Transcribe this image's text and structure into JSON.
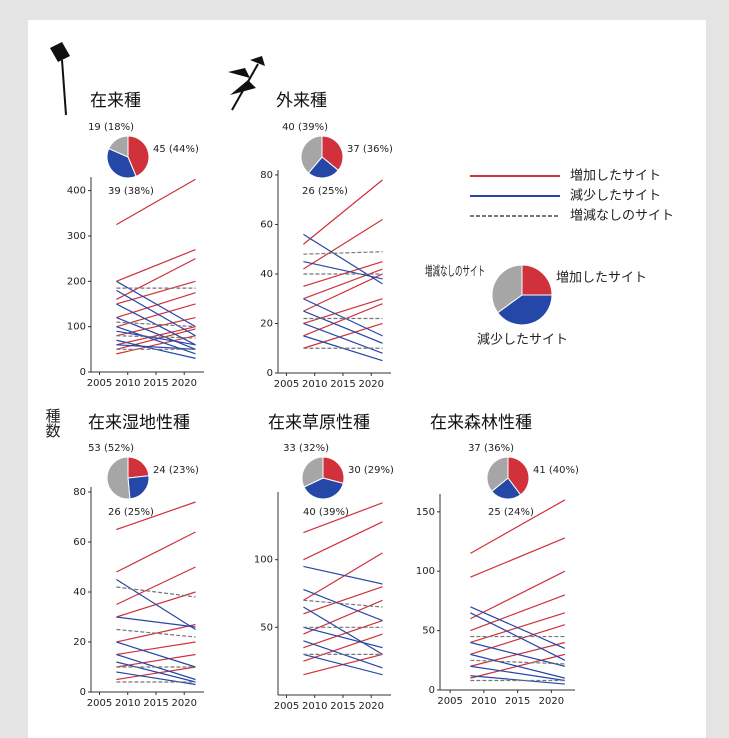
{
  "ylabel": "種数",
  "legend": [
    {
      "name": "増加したサイト",
      "color": "#d0313a",
      "dash": false
    },
    {
      "name": "減少したサイト",
      "color": "#2447a8",
      "dash": false
    },
    {
      "name": "増減なしのサイト",
      "color": "#777777",
      "dash": true
    }
  ],
  "pie_legend": {
    "labels": [
      "増加したサイト",
      "減少したサイト",
      "増減なしのサイト"
    ],
    "values": [
      25,
      40,
      35
    ],
    "colors": [
      "#d0313a",
      "#2447a8",
      "#a6a6a6"
    ]
  },
  "chart_data": [
    {
      "type": "line",
      "title": "在来種",
      "x": [
        2008,
        2022
      ],
      "xlim": [
        2003.5,
        2023.5
      ],
      "xticks": [
        2005,
        2010,
        2015,
        2020
      ],
      "ylim": [
        0,
        430
      ],
      "yticks": [
        0,
        100,
        200,
        300,
        400
      ],
      "pie": {
        "values": [
          45,
          39,
          19
        ],
        "value_labels": [
          "45 (44%)",
          "39 (38%)",
          "19 (18%)"
        ],
        "colors": [
          "#d0313a",
          "#2447a8",
          "#a6a6a6"
        ]
      },
      "series": [
        {
          "color": "#d0313a",
          "values": [
            325,
            425
          ]
        },
        {
          "color": "#d0313a",
          "values": [
            200,
            270
          ]
        },
        {
          "color": "#d0313a",
          "values": [
            160,
            250
          ]
        },
        {
          "color": "#d0313a",
          "values": [
            150,
            200
          ]
        },
        {
          "color": "#d0313a",
          "values": [
            120,
            175
          ]
        },
        {
          "color": "#d0313a",
          "values": [
            100,
            150
          ]
        },
        {
          "color": "#d0313a",
          "values": [
            80,
            120
          ]
        },
        {
          "color": "#d0313a",
          "values": [
            60,
            100
          ]
        },
        {
          "color": "#d0313a",
          "values": [
            50,
            95
          ]
        },
        {
          "color": "#d0313a",
          "values": [
            40,
            80
          ]
        },
        {
          "color": "#2447a8",
          "values": [
            200,
            100
          ]
        },
        {
          "color": "#2447a8",
          "values": [
            180,
            80
          ]
        },
        {
          "color": "#2447a8",
          "values": [
            150,
            60
          ]
        },
        {
          "color": "#2447a8",
          "values": [
            120,
            50
          ]
        },
        {
          "color": "#2447a8",
          "values": [
            100,
            40
          ]
        },
        {
          "color": "#2447a8",
          "values": [
            90,
            60
          ]
        },
        {
          "color": "#2447a8",
          "values": [
            70,
            30
          ]
        },
        {
          "color": "#2447a8",
          "values": [
            60,
            50
          ]
        },
        {
          "color": "#777777",
          "dash": true,
          "values": [
            185,
            185
          ]
        },
        {
          "color": "#777777",
          "dash": true,
          "values": [
            110,
            100
          ]
        },
        {
          "color": "#777777",
          "dash": true,
          "values": [
            80,
            75
          ]
        },
        {
          "color": "#777777",
          "dash": true,
          "values": [
            50,
            50
          ]
        }
      ]
    },
    {
      "type": "line",
      "title": "外来種",
      "x": [
        2008,
        2022
      ],
      "xlim": [
        2003.5,
        2023.5
      ],
      "xticks": [
        2005,
        2010,
        2015,
        2020
      ],
      "ylim": [
        0,
        82
      ],
      "yticks": [
        0,
        20,
        40,
        60,
        80
      ],
      "pie": {
        "values": [
          37,
          26,
          40
        ],
        "value_labels": [
          "37 (36%)",
          "26 (25%)",
          "40 (39%)"
        ],
        "colors": [
          "#d0313a",
          "#2447a8",
          "#a6a6a6"
        ]
      },
      "series": [
        {
          "color": "#d0313a",
          "values": [
            52,
            78
          ]
        },
        {
          "color": "#d0313a",
          "values": [
            42,
            62
          ]
        },
        {
          "color": "#d0313a",
          "values": [
            35,
            45
          ]
        },
        {
          "color": "#d0313a",
          "values": [
            30,
            42
          ]
        },
        {
          "color": "#d0313a",
          "values": [
            25,
            40
          ]
        },
        {
          "color": "#d0313a",
          "values": [
            20,
            30
          ]
        },
        {
          "color": "#d0313a",
          "values": [
            15,
            28
          ]
        },
        {
          "color": "#d0313a",
          "values": [
            10,
            20
          ]
        },
        {
          "color": "#2447a8",
          "values": [
            56,
            36
          ]
        },
        {
          "color": "#2447a8",
          "values": [
            45,
            38
          ]
        },
        {
          "color": "#2447a8",
          "values": [
            30,
            15
          ]
        },
        {
          "color": "#2447a8",
          "values": [
            25,
            12
          ]
        },
        {
          "color": "#2447a8",
          "values": [
            20,
            8
          ]
        },
        {
          "color": "#2447a8",
          "values": [
            15,
            5
          ]
        },
        {
          "color": "#777777",
          "dash": true,
          "values": [
            48,
            49
          ]
        },
        {
          "color": "#777777",
          "dash": true,
          "values": [
            40,
            40
          ]
        },
        {
          "color": "#777777",
          "dash": true,
          "values": [
            22,
            22
          ]
        },
        {
          "color": "#777777",
          "dash": true,
          "values": [
            10,
            10
          ]
        }
      ]
    },
    {
      "type": "line",
      "title": "在来湿地性種",
      "x": [
        2008,
        2022
      ],
      "xlim": [
        2003.5,
        2023.5
      ],
      "xticks": [
        2005,
        2010,
        2015,
        2020
      ],
      "ylim": [
        0,
        82
      ],
      "yticks": [
        0,
        20,
        40,
        60,
        80
      ],
      "pie": {
        "values": [
          24,
          26,
          53
        ],
        "value_labels": [
          "24 (23%)",
          "26 (25%)",
          "53 (52%)"
        ],
        "colors": [
          "#d0313a",
          "#2447a8",
          "#a6a6a6"
        ]
      },
      "series": [
        {
          "color": "#d0313a",
          "values": [
            65,
            76
          ]
        },
        {
          "color": "#d0313a",
          "values": [
            48,
            64
          ]
        },
        {
          "color": "#d0313a",
          "values": [
            35,
            50
          ]
        },
        {
          "color": "#d0313a",
          "values": [
            30,
            40
          ]
        },
        {
          "color": "#d0313a",
          "values": [
            20,
            27
          ]
        },
        {
          "color": "#d0313a",
          "values": [
            15,
            20
          ]
        },
        {
          "color": "#d0313a",
          "values": [
            10,
            15
          ]
        },
        {
          "color": "#d0313a",
          "values": [
            5,
            10
          ]
        },
        {
          "color": "#2447a8",
          "values": [
            45,
            25
          ]
        },
        {
          "color": "#2447a8",
          "values": [
            30,
            26
          ]
        },
        {
          "color": "#2447a8",
          "values": [
            20,
            10
          ]
        },
        {
          "color": "#2447a8",
          "values": [
            15,
            5
          ]
        },
        {
          "color": "#2447a8",
          "values": [
            12,
            4
          ]
        },
        {
          "color": "#2447a8",
          "values": [
            8,
            3
          ]
        },
        {
          "color": "#777777",
          "dash": true,
          "values": [
            42,
            38
          ]
        },
        {
          "color": "#777777",
          "dash": true,
          "values": [
            25,
            22
          ]
        },
        {
          "color": "#777777",
          "dash": true,
          "values": [
            10,
            10
          ]
        },
        {
          "color": "#777777",
          "dash": true,
          "values": [
            4,
            4
          ]
        }
      ]
    },
    {
      "type": "line",
      "title": "在来草原性種",
      "x": [
        2008,
        2022
      ],
      "xlim": [
        2003.5,
        2023.5
      ],
      "xticks": [
        2005,
        2010,
        2015,
        2020
      ],
      "ylim": [
        0,
        150
      ],
      "yticks": [
        50,
        100
      ],
      "pie": {
        "values": [
          30,
          40,
          33
        ],
        "value_labels": [
          "30 (29%)",
          "40 (39%)",
          "33 (32%)"
        ],
        "colors": [
          "#d0313a",
          "#2447a8",
          "#a6a6a6"
        ]
      },
      "series": [
        {
          "color": "#d0313a",
          "values": [
            120,
            142
          ]
        },
        {
          "color": "#d0313a",
          "values": [
            100,
            128
          ]
        },
        {
          "color": "#d0313a",
          "values": [
            70,
            105
          ]
        },
        {
          "color": "#d0313a",
          "values": [
            60,
            80
          ]
        },
        {
          "color": "#d0313a",
          "values": [
            45,
            70
          ]
        },
        {
          "color": "#d0313a",
          "values": [
            35,
            55
          ]
        },
        {
          "color": "#d0313a",
          "values": [
            25,
            45
          ]
        },
        {
          "color": "#d0313a",
          "values": [
            15,
            30
          ]
        },
        {
          "color": "#2447a8",
          "values": [
            95,
            82
          ]
        },
        {
          "color": "#2447a8",
          "values": [
            78,
            55
          ]
        },
        {
          "color": "#2447a8",
          "values": [
            65,
            30
          ]
        },
        {
          "color": "#2447a8",
          "values": [
            50,
            35
          ]
        },
        {
          "color": "#2447a8",
          "values": [
            40,
            20
          ]
        },
        {
          "color": "#2447a8",
          "values": [
            30,
            15
          ]
        },
        {
          "color": "#777777",
          "dash": true,
          "values": [
            70,
            65
          ]
        },
        {
          "color": "#777777",
          "dash": true,
          "values": [
            50,
            50
          ]
        },
        {
          "color": "#777777",
          "dash": true,
          "values": [
            30,
            30
          ]
        }
      ]
    },
    {
      "type": "line",
      "title": "在来森林性種",
      "x": [
        2008,
        2022
      ],
      "xlim": [
        2003.5,
        2023.5
      ],
      "xticks": [
        2005,
        2010,
        2015,
        2020
      ],
      "ylim": [
        0,
        165
      ],
      "yticks": [
        0,
        50,
        100,
        150
      ],
      "pie": {
        "values": [
          41,
          25,
          37
        ],
        "value_labels": [
          "41 (40%)",
          "25 (24%)",
          "37 (36%)"
        ],
        "colors": [
          "#d0313a",
          "#2447a8",
          "#a6a6a6"
        ]
      },
      "series": [
        {
          "color": "#d0313a",
          "values": [
            115,
            160
          ]
        },
        {
          "color": "#d0313a",
          "values": [
            95,
            128
          ]
        },
        {
          "color": "#d0313a",
          "values": [
            60,
            100
          ]
        },
        {
          "color": "#d0313a",
          "values": [
            50,
            80
          ]
        },
        {
          "color": "#d0313a",
          "values": [
            40,
            65
          ]
        },
        {
          "color": "#d0313a",
          "values": [
            30,
            55
          ]
        },
        {
          "color": "#d0313a",
          "values": [
            20,
            40
          ]
        },
        {
          "color": "#d0313a",
          "values": [
            10,
            30
          ]
        },
        {
          "color": "#2447a8",
          "values": [
            70,
            35
          ]
        },
        {
          "color": "#2447a8",
          "values": [
            65,
            25
          ]
        },
        {
          "color": "#2447a8",
          "values": [
            40,
            20
          ]
        },
        {
          "color": "#2447a8",
          "values": [
            30,
            10
          ]
        },
        {
          "color": "#2447a8",
          "values": [
            20,
            8
          ]
        },
        {
          "color": "#2447a8",
          "values": [
            12,
            5
          ]
        },
        {
          "color": "#777777",
          "dash": true,
          "values": [
            45,
            45
          ]
        },
        {
          "color": "#777777",
          "dash": true,
          "values": [
            25,
            22
          ]
        },
        {
          "color": "#777777",
          "dash": true,
          "values": [
            8,
            8
          ]
        }
      ]
    }
  ]
}
